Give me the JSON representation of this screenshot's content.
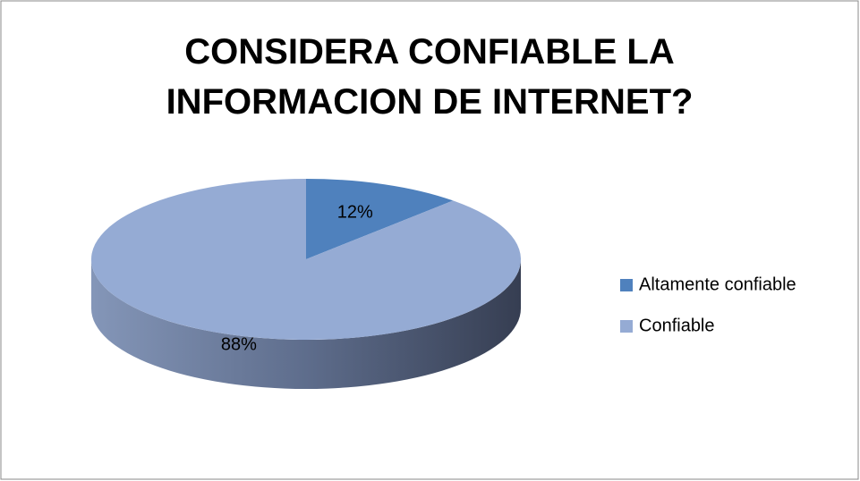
{
  "chart_data": {
    "type": "pie",
    "title": "CONSIDERA CONFIABLE LA INFORMACION DE INTERNET?",
    "categories": [
      "Altamente confiable",
      "Confiable"
    ],
    "values": [
      12,
      88
    ],
    "value_labels": [
      "12%",
      "88%"
    ],
    "colors": [
      "#4f81bd",
      "#95abd4"
    ],
    "legend": "right"
  }
}
